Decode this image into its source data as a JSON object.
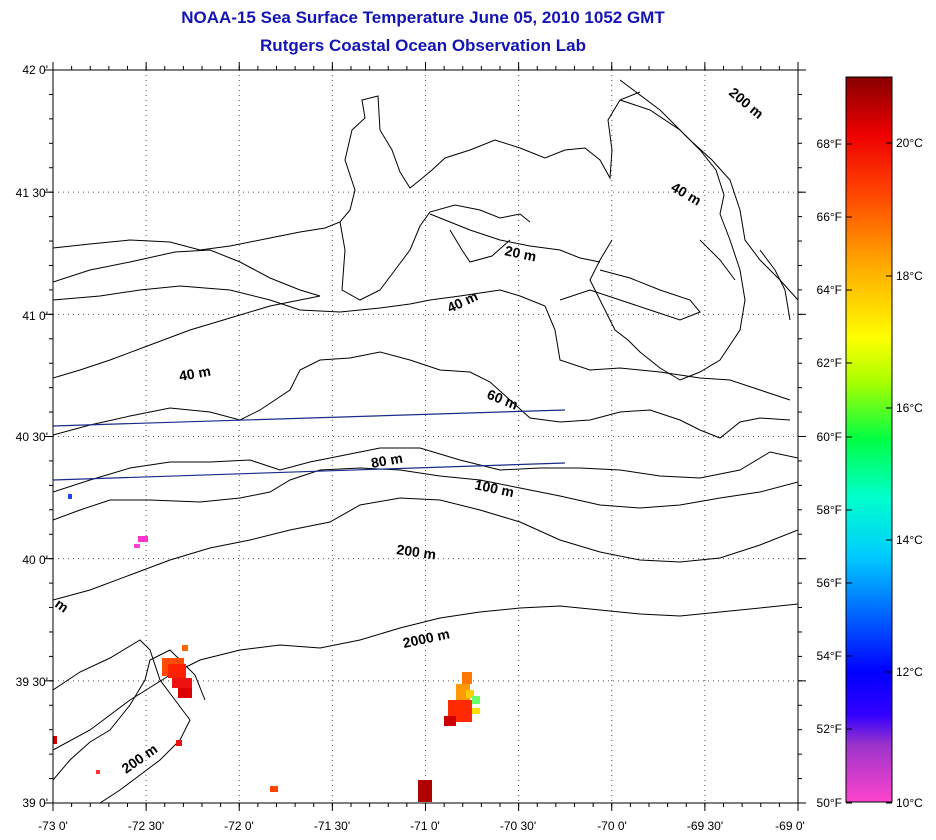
{
  "title": {
    "line1": "NOAA-15 Sea Surface Temperature June 05, 2010 1052 GMT",
    "line2": "Rutgers Coastal Ocean Observation Lab"
  },
  "map": {
    "lon_range": [
      -73.0,
      -69.0
    ],
    "lat_range": [
      39.0,
      42.0
    ],
    "lon_ticks": [
      "-73 0'",
      "-72 30'",
      "-72 0'",
      "-71 30'",
      "-71 0'",
      "-70 30'",
      "-70 0'",
      "-69 30'",
      "-69 0'"
    ],
    "lat_ticks": [
      "42 0'",
      "41 30'",
      "41 0'",
      "40 30'",
      "40 0'",
      "39 30'",
      "39 0'"
    ],
    "grid": "dotted",
    "contour_labels": [
      "200 m",
      "40 m",
      "20 m",
      "40 m",
      "40 m",
      "60 m",
      "80 m",
      "100 m",
      "200 m",
      "2000 m",
      "200 m",
      "m"
    ]
  },
  "colorbar": {
    "fahrenheit": [
      "68°F",
      "66°F",
      "64°F",
      "62°F",
      "60°F",
      "58°F",
      "56°F",
      "54°F",
      "52°F",
      "50°F"
    ],
    "celsius": [
      "20°C",
      "18°C",
      "16°C",
      "14°C",
      "12°C",
      "10°C"
    ],
    "colors": [
      "#ff44cc",
      "#8a2be2",
      "#0000ff",
      "#00bfff",
      "#00ffff",
      "#00ff66",
      "#ccff00",
      "#ffff00",
      "#ffaa00",
      "#ff4400",
      "#ee0000",
      "#8b0000"
    ]
  }
}
